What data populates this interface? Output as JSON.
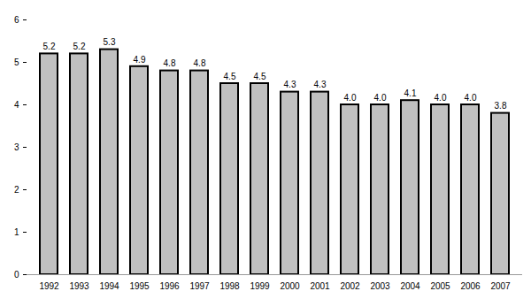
{
  "chart_data": {
    "type": "bar",
    "categories": [
      "1992",
      "1993",
      "1994",
      "1995",
      "1996",
      "1997",
      "1998",
      "1999",
      "2000",
      "2001",
      "2002",
      "2003",
      "2004",
      "2005",
      "2006",
      "2007"
    ],
    "values": [
      5.2,
      5.2,
      5.3,
      4.9,
      4.8,
      4.8,
      4.5,
      4.5,
      4.3,
      4.3,
      4.0,
      4.0,
      4.1,
      4.0,
      4.0,
      3.8
    ],
    "value_labels": [
      "5.2",
      "5.2",
      "5.3",
      "4.9",
      "4.8",
      "4.8",
      "4.5",
      "4.5",
      "4.3",
      "4.3",
      "4.0",
      "4.0",
      "4.1",
      "4.0",
      "4.0",
      "3.8"
    ],
    "color": "#c0c0c0",
    "ylim": [
      0,
      6
    ],
    "yticks": [
      0,
      1,
      2,
      3,
      4,
      5,
      6
    ],
    "grid": false,
    "data_labels": true
  }
}
